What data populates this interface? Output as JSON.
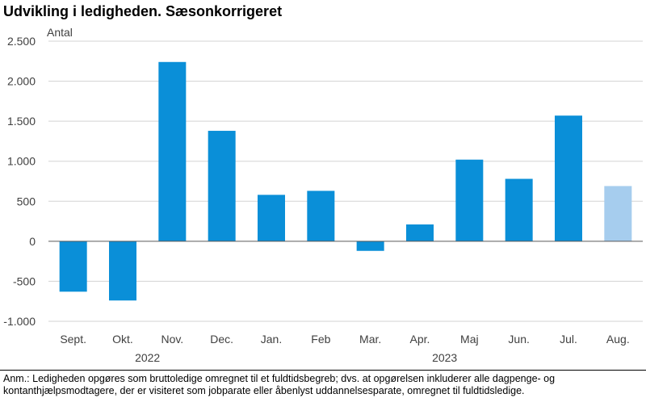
{
  "title": "Udvikling i ledigheden. Sæsonkorrigeret",
  "note": "Anm.: Ledigheden opgøres som bruttoledige omregnet til et fuldtidsbegreb; dvs. at opgørelsen inkluderer alle dagpenge- og kontanthjælpsmodtagere, der er visiteret som jobparate eller åbenlyst uddannelsesparate, omregnet til fuldtidsledige.",
  "chart_data": {
    "type": "bar",
    "title": "Udvikling i ledigheden. Sæsonkorrigeret",
    "ylabel": "Antal",
    "xlabel": "",
    "ylim": [
      -1000,
      2500
    ],
    "yticks": [
      2500,
      2000,
      1500,
      1000,
      500,
      0,
      -500,
      -1000
    ],
    "ytick_labels": [
      "2.500",
      "2.000",
      "1.500",
      "1.000",
      "500",
      "0",
      "-500",
      "-1.000"
    ],
    "categories": [
      "Sept.",
      "Okt.",
      "Nov.",
      "Dec.",
      "Jan.",
      "Feb",
      "Mar.",
      "Apr.",
      "Maj",
      "Jun.",
      "Jul.",
      "Aug."
    ],
    "values": [
      -630,
      -740,
      2240,
      1380,
      580,
      630,
      -120,
      210,
      1020,
      780,
      1570,
      690
    ],
    "year_groups": [
      {
        "label": "2022",
        "first_index": 0,
        "last_index": 3
      },
      {
        "label": "2023",
        "first_index": 4,
        "last_index": 11
      }
    ],
    "colors": {
      "bar": "#0a8fd8",
      "bar_highlight": "#a6cdee",
      "grid": "#d3d3d3",
      "zero_line": "#595959"
    },
    "highlighted_index": 11,
    "grid": true
  }
}
